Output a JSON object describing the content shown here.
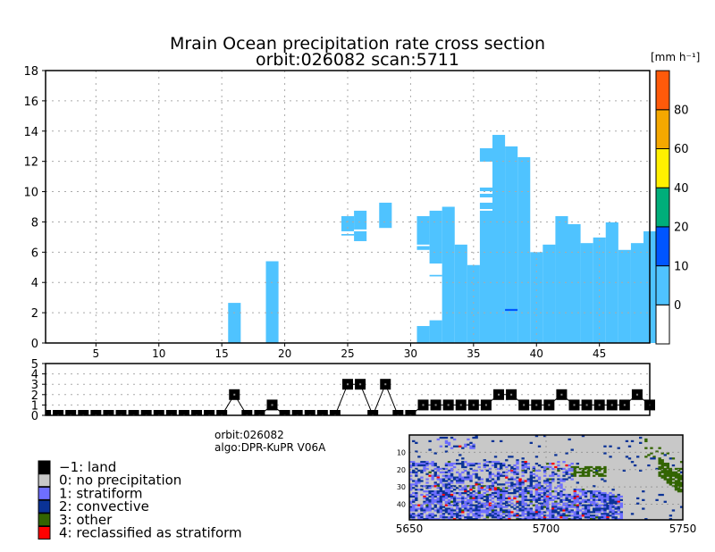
{
  "title": {
    "line1": "Mrain Ocean precipitation rate cross section",
    "line2": "orbit:026082    scan:5711"
  },
  "colorbar": {
    "unit": "[mm h⁻¹]",
    "levels": [
      {
        "from": null,
        "to": 0,
        "color": "#ffffff"
      },
      {
        "from": 0,
        "to": 10,
        "color": "#4fc3ff"
      },
      {
        "from": 10,
        "to": 20,
        "color": "#0055ff"
      },
      {
        "from": 20,
        "to": 40,
        "color": "#00ae7a"
      },
      {
        "from": 40,
        "to": 60,
        "color": "#fff000"
      },
      {
        "from": 60,
        "to": 80,
        "color": "#f5a800"
      },
      {
        "from": 80,
        "to": null,
        "color": "#ff5a0a"
      }
    ],
    "labels": [
      "0",
      "10",
      "20",
      "40",
      "60",
      "80"
    ]
  },
  "chart_data": [
    {
      "type": "heatmap",
      "title": "Mrain Ocean precipitation rate cross section",
      "xlabel": "",
      "ylabel": "",
      "xlim": [
        1,
        49
      ],
      "ylim": [
        0,
        18
      ],
      "xticks": [
        "5",
        "10",
        "15",
        "20",
        "25",
        "30",
        "35",
        "40",
        "45"
      ],
      "yticks": [
        "0",
        "2",
        "4",
        "6",
        "8",
        "10",
        "12",
        "14",
        "16",
        "18"
      ],
      "grid": true,
      "segments_note": "each entry: [column, bottom_km, top_km, level_index]",
      "segments": [
        [
          16,
          0,
          2.65,
          1
        ],
        [
          19,
          0,
          5.4,
          1
        ],
        [
          25,
          7.38,
          8.38,
          1
        ],
        [
          25,
          7.1,
          7.2,
          1
        ],
        [
          26,
          7.5,
          8.74,
          1
        ],
        [
          26,
          6.73,
          7.38,
          1
        ],
        [
          28,
          7.6,
          9.27,
          1
        ],
        [
          31,
          6.5,
          8.38,
          1
        ],
        [
          31,
          6.15,
          6.4,
          1
        ],
        [
          31,
          0,
          1.12,
          1
        ],
        [
          32,
          5.25,
          8.74,
          1
        ],
        [
          32,
          4.4,
          4.5,
          1
        ],
        [
          32,
          0,
          1.5,
          1
        ],
        [
          33,
          0,
          9.0,
          1
        ],
        [
          34,
          0,
          6.5,
          1
        ],
        [
          35,
          0,
          5.15,
          1
        ],
        [
          36,
          11.98,
          12.87,
          1
        ],
        [
          36,
          10.03,
          10.27,
          1
        ],
        [
          36,
          9.62,
          9.86,
          1
        ],
        [
          36,
          8.85,
          9.27,
          1
        ],
        [
          36,
          0,
          8.74,
          1
        ],
        [
          37,
          0,
          13.75,
          1
        ],
        [
          38,
          0,
          12.99,
          1
        ],
        [
          38,
          2.12,
          2.25,
          2
        ],
        [
          39,
          0,
          12.28,
          1
        ],
        [
          40,
          0,
          6.0,
          1
        ],
        [
          41,
          0,
          6.5,
          1
        ],
        [
          42,
          0,
          8.38,
          1
        ],
        [
          43,
          0,
          7.85,
          1
        ],
        [
          44,
          0,
          6.6,
          1
        ],
        [
          45,
          0,
          6.97,
          1
        ],
        [
          46,
          0,
          7.97,
          1
        ],
        [
          47,
          0,
          6.15,
          1
        ],
        [
          48,
          0,
          6.6,
          1
        ],
        [
          49,
          0,
          7.38,
          1
        ]
      ]
    },
    {
      "type": "line",
      "ylim": [
        0,
        5
      ],
      "yticks": [
        "0",
        "1",
        "2",
        "3",
        "4",
        "5"
      ],
      "x": [
        1,
        2,
        3,
        4,
        5,
        6,
        7,
        8,
        9,
        10,
        11,
        12,
        13,
        14,
        15,
        16,
        17,
        18,
        19,
        20,
        21,
        22,
        23,
        24,
        25,
        26,
        27,
        28,
        29,
        30,
        31,
        32,
        33,
        34,
        35,
        36,
        37,
        38,
        39,
        40,
        41,
        42,
        43,
        44,
        45,
        46,
        47,
        48,
        49
      ],
      "y": [
        0,
        0,
        0,
        0,
        0,
        0,
        0,
        0,
        0,
        0,
        0,
        0,
        0,
        0,
        0,
        2,
        0,
        0,
        1,
        0,
        0,
        0,
        0,
        0,
        3,
        3,
        0,
        3,
        0,
        0,
        1,
        1,
        1,
        1,
        1,
        1,
        2,
        2,
        1,
        1,
        1,
        2,
        1,
        1,
        1,
        1,
        1,
        2,
        1
      ]
    }
  ],
  "info": {
    "orbit": "orbit:026082",
    "algo": "algo:DPR-KuPR V06A"
  },
  "legend": [
    {
      "label": "−1: land",
      "color": "#000000"
    },
    {
      "label": "0: no precipitation",
      "color": "#c8c8c8"
    },
    {
      "label": "1: stratiform",
      "color": "#6e6eff"
    },
    {
      "label": "2: convective",
      "color": "#0a3296"
    },
    {
      "label": "3: other",
      "color": "#326400"
    },
    {
      "label": "4: reclassified as stratiform",
      "color": "#ff0000"
    }
  ],
  "map": {
    "xticks": [
      "5650",
      "5700",
      "5750"
    ],
    "yticks": [
      "10",
      "20",
      "30",
      "40"
    ]
  }
}
